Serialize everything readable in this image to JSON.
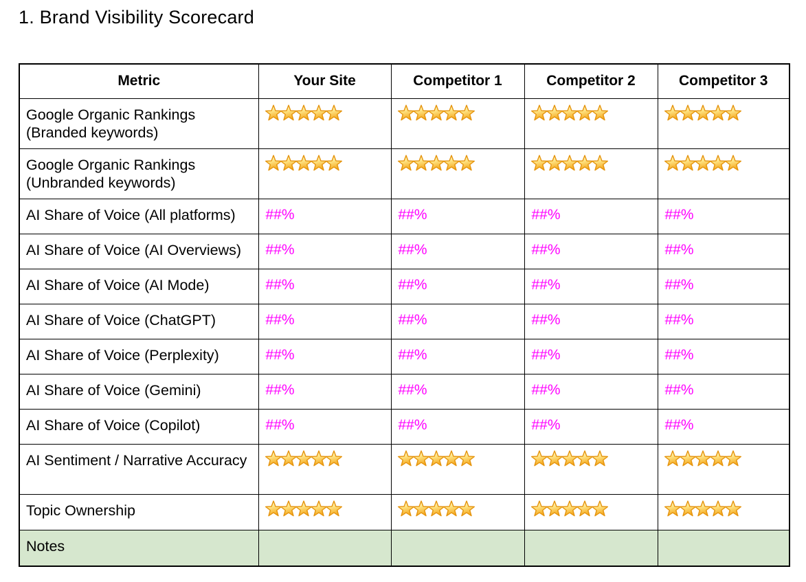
{
  "page": {
    "title": "1. Brand Visibility Scorecard"
  },
  "table": {
    "columns": [
      "Metric",
      "Your Site",
      "Competitor 1",
      "Competitor 2",
      "Competitor 3"
    ],
    "rows": [
      {
        "label": "Google Organic Rankings (Branded keywords)",
        "type": "stars",
        "values": [
          5,
          5,
          5,
          5
        ]
      },
      {
        "label": "Google Organic Rankings (Unbranded keywords)",
        "type": "stars",
        "values": [
          5,
          5,
          5,
          5
        ]
      },
      {
        "label": "AI Share of Voice (All platforms)",
        "type": "percent",
        "values": [
          "##%",
          "##%",
          "##%",
          "##%"
        ]
      },
      {
        "label": "AI Share of Voice (AI Overviews)",
        "type": "percent",
        "values": [
          "##%",
          "##%",
          "##%",
          "##%"
        ]
      },
      {
        "label": "AI Share of Voice (AI Mode)",
        "type": "percent",
        "values": [
          "##%",
          "##%",
          "##%",
          "##%"
        ]
      },
      {
        "label": "AI Share of Voice (ChatGPT)",
        "type": "percent",
        "values": [
          "##%",
          "##%",
          "##%",
          "##%"
        ]
      },
      {
        "label": "AI Share of Voice (Perplexity)",
        "type": "percent",
        "values": [
          "##%",
          "##%",
          "##%",
          "##%"
        ]
      },
      {
        "label": "AI Share of Voice (Gemini)",
        "type": "percent",
        "values": [
          "##%",
          "##%",
          "##%",
          "##%"
        ]
      },
      {
        "label": "AI Share of Voice (Copilot)",
        "type": "percent",
        "values": [
          "##%",
          "##%",
          "##%",
          "##%"
        ]
      },
      {
        "label": "AI Sentiment / Narrative Accuracy",
        "type": "stars",
        "values": [
          5,
          5,
          5,
          5
        ]
      },
      {
        "label": "Topic Ownership",
        "type": "stars",
        "values": [
          5,
          5,
          5,
          5
        ]
      },
      {
        "label": "Notes",
        "type": "notes",
        "values": [
          "",
          "",
          "",
          ""
        ]
      }
    ]
  },
  "icons": {
    "rating_icon": "star-icon"
  },
  "colors": {
    "percent_text": "#ff00ff",
    "notes_row_bg": "#d6e7ce",
    "table_border": "#000000",
    "star_fill_top": "#fffce8",
    "star_fill_mid": "#ffe88c",
    "star_fill_bottom": "#f5a91f",
    "star_outline": "#e5940e"
  }
}
